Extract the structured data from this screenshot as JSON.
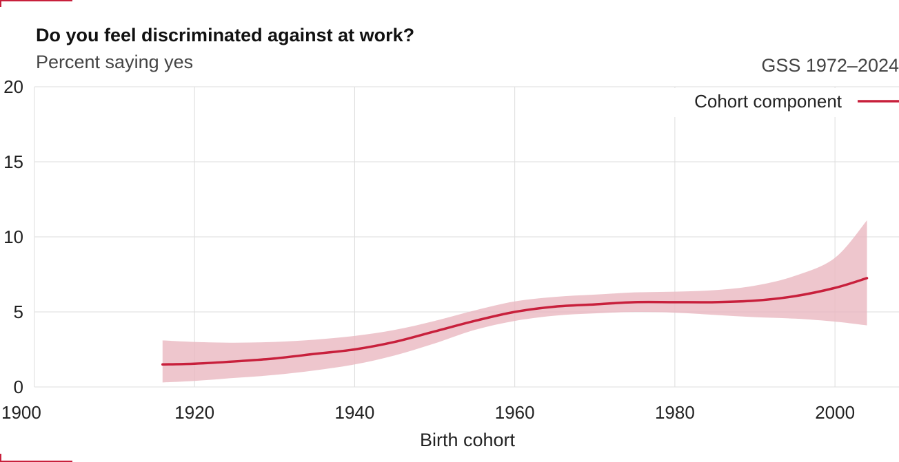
{
  "header": {
    "title": "Do you feel discriminated against at work?",
    "subtitle": "Percent saying yes",
    "source": "GSS 1972–2024"
  },
  "colors": {
    "accent": "#c8203c",
    "band": "#eab8c1",
    "grid": "#dddddd",
    "corner": "#c8203c"
  },
  "chart_data": {
    "type": "line",
    "title": "Do you feel discriminated against at work?",
    "subtitle": "Percent saying yes",
    "xlabel": "Birth cohort",
    "ylabel": "",
    "xlim": [
      1900,
      2008
    ],
    "ylim": [
      0,
      20
    ],
    "x_ticks": [
      1900,
      1920,
      1940,
      1960,
      1980,
      2000
    ],
    "y_ticks": [
      0,
      5,
      10,
      15,
      20
    ],
    "grid": true,
    "legend": {
      "position": "top-right",
      "entries": [
        "Cohort component"
      ]
    },
    "series": [
      {
        "name": "Cohort component",
        "x": [
          1916,
          1920,
          1925,
          1930,
          1935,
          1940,
          1945,
          1950,
          1955,
          1960,
          1965,
          1970,
          1975,
          1980,
          1985,
          1990,
          1995,
          2000,
          2004
        ],
        "y": [
          1.5,
          1.55,
          1.7,
          1.9,
          2.2,
          2.5,
          3.0,
          3.7,
          4.4,
          5.0,
          5.35,
          5.5,
          5.65,
          5.65,
          5.65,
          5.75,
          6.05,
          6.6,
          7.25
        ],
        "lower": [
          0.3,
          0.4,
          0.6,
          0.8,
          1.1,
          1.5,
          2.1,
          2.9,
          3.8,
          4.4,
          4.75,
          4.9,
          5.0,
          4.95,
          4.8,
          4.65,
          4.55,
          4.35,
          4.1
        ],
        "upper": [
          3.1,
          3.0,
          2.95,
          3.0,
          3.15,
          3.4,
          3.8,
          4.4,
          5.1,
          5.7,
          6.0,
          6.15,
          6.3,
          6.35,
          6.45,
          6.75,
          7.4,
          8.6,
          11.1
        ]
      }
    ]
  }
}
